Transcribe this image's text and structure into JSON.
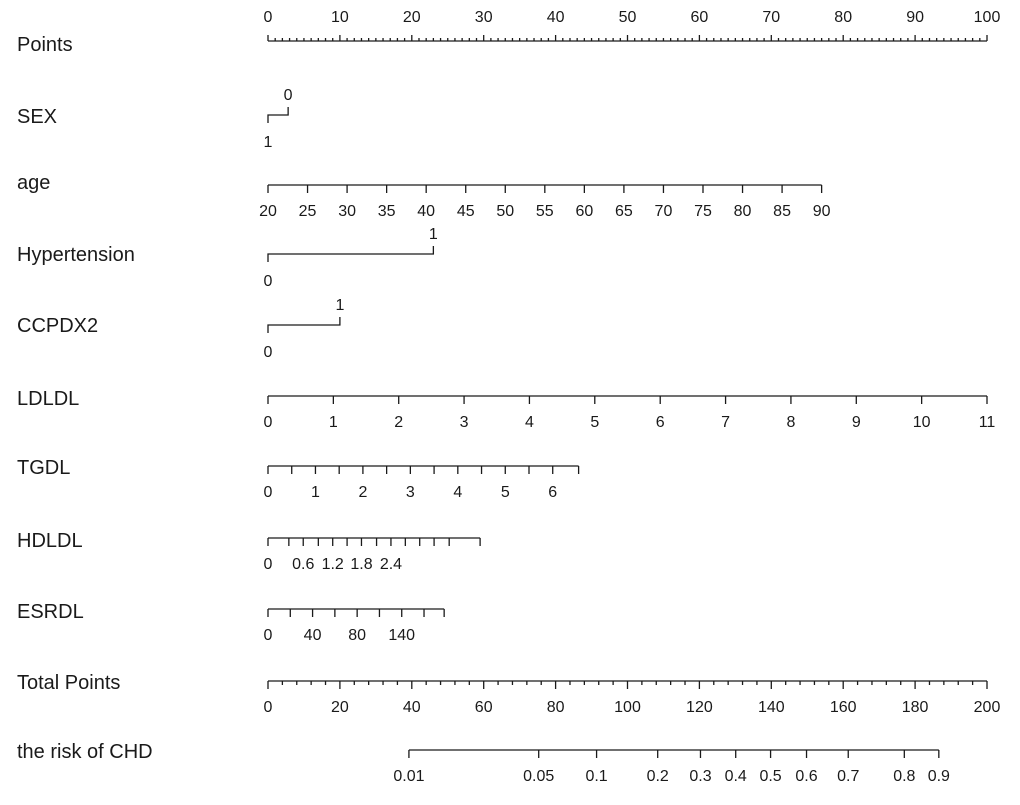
{
  "chart_data": {
    "type": "nomogram",
    "rows": [
      {
        "id": "points",
        "label": "Points",
        "line": [
          0,
          100
        ],
        "ticks": [
          0,
          10,
          20,
          30,
          40,
          50,
          60,
          70,
          80,
          90,
          100
        ],
        "tick_labels": [
          "0",
          "10",
          "20",
          "30",
          "40",
          "50",
          "60",
          "70",
          "80",
          "90",
          "100"
        ],
        "minor": [
          1,
          2,
          3,
          4,
          5,
          6,
          7,
          8,
          9,
          11,
          12,
          13,
          14,
          15,
          16,
          17,
          18,
          19,
          21,
          22,
          23,
          24,
          25,
          26,
          27,
          28,
          29,
          31,
          32,
          33,
          34,
          35,
          36,
          37,
          38,
          39,
          41,
          42,
          43,
          44,
          45,
          46,
          47,
          48,
          49,
          51,
          52,
          53,
          54,
          55,
          56,
          57,
          58,
          59,
          61,
          62,
          63,
          64,
          65,
          66,
          67,
          68,
          69,
          71,
          72,
          73,
          74,
          75,
          76,
          77,
          78,
          79,
          81,
          82,
          83,
          84,
          85,
          86,
          87,
          88,
          89,
          91,
          92,
          93,
          94,
          95,
          96,
          97,
          98,
          99
        ],
        "label_pos": "above"
      },
      {
        "id": "sex",
        "label": "SEX",
        "line": [
          0,
          2.8
        ],
        "style": "categorical",
        "categories": [
          {
            "text": "0",
            "points": 2.8,
            "pos": "above"
          },
          {
            "text": "1",
            "points": 0,
            "pos": "below"
          }
        ]
      },
      {
        "id": "age",
        "label": "age",
        "line": [
          0,
          77
        ],
        "ticks": [
          0,
          5.5,
          11,
          16.5,
          22,
          27.5,
          33,
          38.5,
          44,
          49.5,
          55,
          60.5,
          66,
          71.5,
          77
        ],
        "tick_labels": [
          "20",
          "25",
          "30",
          "35",
          "40",
          "45",
          "50",
          "55",
          "60",
          "65",
          "70",
          "75",
          "80",
          "85",
          "90"
        ],
        "label_pos": "below"
      },
      {
        "id": "hypertension",
        "label": "Hypertension",
        "line": [
          0,
          23
        ],
        "style": "categorical",
        "categories": [
          {
            "text": "1",
            "points": 23,
            "pos": "above"
          },
          {
            "text": "0",
            "points": 0,
            "pos": "below"
          }
        ]
      },
      {
        "id": "ccpdx2",
        "label": "CCPDX2",
        "line": [
          0,
          10
        ],
        "style": "categorical",
        "categories": [
          {
            "text": "1",
            "points": 10,
            "pos": "above"
          },
          {
            "text": "0",
            "points": 0,
            "pos": "below"
          }
        ]
      },
      {
        "id": "ldldl",
        "label": "LDLDL",
        "line": [
          0,
          100
        ],
        "ticks": [
          0,
          9.09,
          18.18,
          27.27,
          36.36,
          45.45,
          54.55,
          63.64,
          72.73,
          81.82,
          90.91,
          100
        ],
        "tick_labels": [
          "0",
          "1",
          "2",
          "3",
          "4",
          "5",
          "6",
          "7",
          "8",
          "9",
          "10",
          "11"
        ],
        "label_pos": "below"
      },
      {
        "id": "tgdl",
        "label": "TGDL",
        "line": [
          0,
          43.2
        ],
        "ticks": [
          0,
          3.3,
          6.6,
          9.9,
          13.2,
          16.5,
          19.8,
          23.1,
          26.4,
          29.7,
          33,
          36.3,
          39.6,
          43.2
        ],
        "tick_labels": [
          "0",
          "",
          "1",
          "",
          "2",
          "",
          "3",
          "",
          "4",
          "",
          "5",
          "",
          "6",
          ""
        ],
        "label_pos": "below"
      },
      {
        "id": "hdldl",
        "label": "HDLDL",
        "line": [
          0,
          29.5
        ],
        "ticks": [
          0,
          2.9,
          4.9,
          7,
          9,
          11,
          13,
          15.1,
          17.1,
          19.1,
          21.1,
          23.1,
          25.2,
          29.5
        ],
        "tick_labels": [
          "0",
          "",
          "0.6",
          "",
          "1.2",
          "",
          "1.8",
          "",
          "2.4",
          "",
          "",
          "",
          "",
          ""
        ],
        "label_pos": "below"
      },
      {
        "id": "esrdl",
        "label": "ESRDL",
        "line": [
          0,
          24.5
        ],
        "ticks": [
          0,
          3.1,
          6.2,
          9.3,
          12.4,
          15.5,
          18.6,
          21.7,
          24.5
        ],
        "tick_labels": [
          "0",
          "",
          "40",
          "",
          "80",
          "",
          "140",
          "",
          ""
        ],
        "label_pos": "below"
      },
      {
        "id": "total",
        "label": "Total Points",
        "line": [
          0,
          200
        ],
        "ticks": [
          0,
          20,
          40,
          60,
          80,
          100,
          120,
          140,
          160,
          180,
          200
        ],
        "tick_labels": [
          "0",
          "20",
          "40",
          "60",
          "80",
          "100",
          "120",
          "140",
          "160",
          "180",
          "200"
        ],
        "minor": [
          4,
          8,
          12,
          16,
          24,
          28,
          32,
          36,
          44,
          48,
          52,
          56,
          64,
          68,
          72,
          76,
          84,
          88,
          92,
          96,
          104,
          108,
          112,
          116,
          124,
          128,
          132,
          136,
          144,
          148,
          152,
          156,
          164,
          168,
          172,
          176,
          184,
          188,
          192,
          196
        ],
        "label_pos": "below"
      },
      {
        "id": "risk",
        "label": "the risk of CHD",
        "line": [
          39.2,
          186.6
        ],
        "ticks": [
          39.2,
          75.3,
          91.4,
          108.4,
          120.3,
          130.1,
          139.8,
          149.8,
          161.4,
          177.0,
          186.6
        ],
        "tick_labels": [
          "0.01",
          "0.05",
          "0.1",
          "0.2",
          "0.3",
          "0.4",
          "0.5",
          "0.6",
          "0.7",
          "0.8",
          "0.9"
        ],
        "label_pos": "below"
      }
    ]
  }
}
